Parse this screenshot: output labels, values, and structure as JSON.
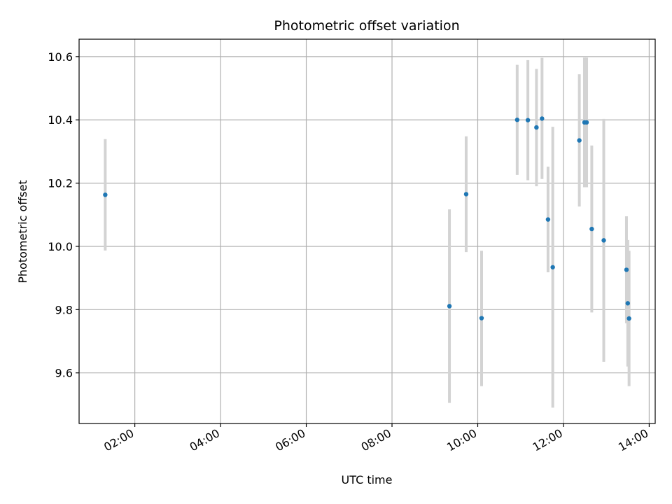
{
  "chart_data": {
    "type": "scatter",
    "title": "Photometric offset variation",
    "xlabel": "UTC time",
    "ylabel": "Photometric offset",
    "x_unit": "hours",
    "xlim": [
      0.7,
      14.14
    ],
    "ylim": [
      9.44,
      10.655
    ],
    "x_ticks": [
      {
        "value": 2,
        "label": "02:00"
      },
      {
        "value": 4,
        "label": "04:00"
      },
      {
        "value": 6,
        "label": "06:00"
      },
      {
        "value": 8,
        "label": "08:00"
      },
      {
        "value": 10,
        "label": "10:00"
      },
      {
        "value": 12,
        "label": "12:00"
      },
      {
        "value": 14,
        "label": "14:00"
      }
    ],
    "y_ticks": [
      {
        "value": 9.6,
        "label": "9.6"
      },
      {
        "value": 9.8,
        "label": "9.8"
      },
      {
        "value": 10.0,
        "label": "10.0"
      },
      {
        "value": 10.2,
        "label": "10.2"
      },
      {
        "value": 10.4,
        "label": "10.4"
      },
      {
        "value": 10.6,
        "label": "10.6"
      }
    ],
    "grid": true,
    "colors": {
      "point": "#1f77b4",
      "errorbar": "#d3d3d3",
      "grid": "#b0b0b0"
    },
    "points": [
      {
        "time": "01:19",
        "x": 1.31,
        "y": 10.163,
        "ylow": 9.987,
        "yhigh": 10.339
      },
      {
        "time": "09:20",
        "x": 9.34,
        "y": 9.811,
        "ylow": 9.505,
        "yhigh": 10.117
      },
      {
        "time": "09:44",
        "x": 9.73,
        "y": 10.165,
        "ylow": 9.982,
        "yhigh": 10.348
      },
      {
        "time": "10:05",
        "x": 10.09,
        "y": 9.773,
        "ylow": 9.558,
        "yhigh": 9.986
      },
      {
        "time": "10:55",
        "x": 10.92,
        "y": 10.4,
        "ylow": 10.226,
        "yhigh": 10.574
      },
      {
        "time": "11:10",
        "x": 11.17,
        "y": 10.399,
        "ylow": 10.209,
        "yhigh": 10.589
      },
      {
        "time": "11:22",
        "x": 11.37,
        "y": 10.376,
        "ylow": 10.19,
        "yhigh": 10.561
      },
      {
        "time": "11:30",
        "x": 11.5,
        "y": 10.404,
        "ylow": 10.213,
        "yhigh": 10.596
      },
      {
        "time": "11:38",
        "x": 11.64,
        "y": 10.085,
        "ylow": 9.918,
        "yhigh": 10.252
      },
      {
        "time": "11:45",
        "x": 11.75,
        "y": 9.934,
        "ylow": 9.49,
        "yhigh": 10.378
      },
      {
        "time": "12:22",
        "x": 12.37,
        "y": 10.335,
        "ylow": 10.126,
        "yhigh": 10.544
      },
      {
        "time": "12:29",
        "x": 12.49,
        "y": 10.392,
        "ylow": 10.187,
        "yhigh": 10.597
      },
      {
        "time": "12:32",
        "x": 12.54,
        "y": 10.392,
        "ylow": 10.187,
        "yhigh": 10.597
      },
      {
        "time": "12:39",
        "x": 12.66,
        "y": 10.055,
        "ylow": 9.791,
        "yhigh": 10.319
      },
      {
        "time": "12:56",
        "x": 12.94,
        "y": 10.019,
        "ylow": 9.635,
        "yhigh": 10.403
      },
      {
        "time": "13:28",
        "x": 13.47,
        "y": 9.926,
        "ylow": 9.757,
        "yhigh": 10.095
      },
      {
        "time": "13:30",
        "x": 13.5,
        "y": 9.82,
        "ylow": 9.62,
        "yhigh": 10.02
      },
      {
        "time": "13:32",
        "x": 13.53,
        "y": 9.772,
        "ylow": 9.558,
        "yhigh": 9.986
      }
    ]
  }
}
